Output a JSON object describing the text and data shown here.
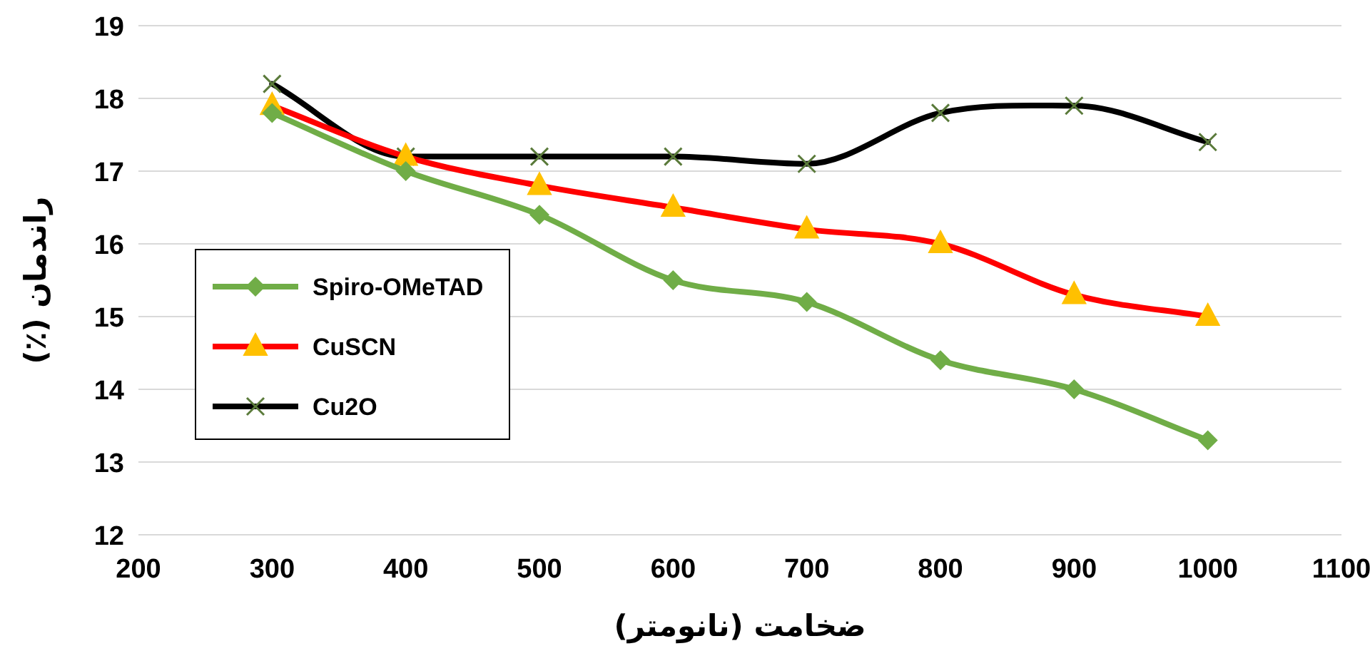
{
  "chart_data": {
    "type": "line",
    "xlabel": "ضخامت (نانومتر)",
    "ylabel": "راندمان (٪)",
    "x": [
      300,
      400,
      500,
      600,
      700,
      800,
      900,
      1000
    ],
    "series": [
      {
        "name": "Spiro-OMeTAD",
        "color": "#70ad47",
        "marker": "diamond",
        "values": [
          17.8,
          17.0,
          16.4,
          15.5,
          15.2,
          14.4,
          14.0,
          13.3
        ]
      },
      {
        "name": "CuSCN",
        "color": "#ff0000",
        "marker": "triangle",
        "values": [
          17.9,
          17.2,
          16.8,
          16.5,
          16.2,
          16.0,
          15.3,
          15.0
        ]
      },
      {
        "name": "Cu2O",
        "color": "#000000",
        "marker": "cross",
        "values": [
          18.2,
          17.2,
          17.2,
          17.2,
          17.1,
          17.8,
          17.9,
          17.4
        ]
      }
    ],
    "xlim": [
      200,
      1100
    ],
    "xticks": [
      200,
      300,
      400,
      500,
      600,
      700,
      800,
      900,
      1000,
      1100
    ],
    "ylim": [
      12,
      19
    ],
    "yticks": [
      12,
      13,
      14,
      15,
      16,
      17,
      18,
      19
    ],
    "grid": "y",
    "legend": "left",
    "line_style": "solid"
  }
}
